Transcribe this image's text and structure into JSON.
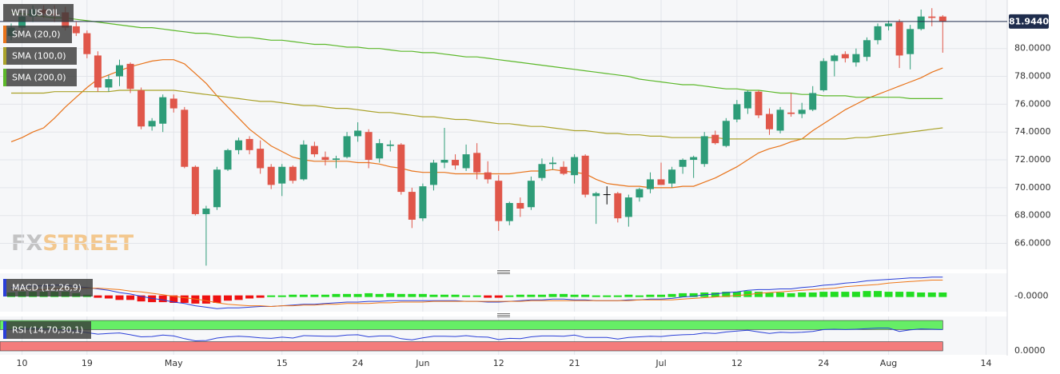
{
  "watermark": [
    "FX",
    "STREET"
  ],
  "chart_data": [
    {
      "type": "candlestick",
      "title": "WTI US OIL",
      "categories": [
        null,
        "10",
        null,
        null,
        null,
        null,
        null,
        "19",
        null,
        null,
        null,
        null,
        null,
        null,
        null,
        "May",
        null,
        null,
        null,
        null,
        null,
        null,
        null,
        null,
        null,
        "15",
        null,
        null,
        null,
        null,
        null,
        null,
        "24",
        null,
        null,
        null,
        null,
        null,
        "Jun",
        null,
        null,
        null,
        null,
        null,
        null,
        "12",
        null,
        null,
        null,
        null,
        null,
        null,
        "21",
        null,
        null,
        null,
        null,
        null,
        null,
        null,
        "Jul",
        null,
        null,
        null,
        null,
        null,
        null,
        "12",
        null,
        null,
        null,
        null,
        null,
        null,
        null,
        "24",
        null,
        null,
        null,
        null,
        null,
        "Aug",
        null,
        null,
        null,
        null,
        null,
        null,
        null,
        null,
        "14",
        null,
        null
      ],
      "open": [
        80.9,
        81.5,
        82.3,
        82.8,
        82.5,
        82.6,
        81.6,
        81.1,
        79.5,
        77.2,
        78.0,
        78.9,
        77.0,
        74.4,
        74.6,
        76.4,
        75.6,
        71.5,
        68.1,
        68.6,
        71.3,
        72.7,
        73.5,
        72.8,
        71.5,
        70.3,
        71.5,
        70.6,
        73.0,
        72.2,
        72.0,
        72.2,
        73.7,
        74.0,
        72.1,
        73.0,
        73.1,
        69.7,
        67.8,
        70.2,
        71.8,
        72.0,
        71.4,
        72.5,
        71.1,
        70.5,
        67.6,
        68.9,
        68.6,
        70.7,
        71.7,
        71.5,
        70.9,
        72.3,
        69.4,
        69.5,
        69.6,
        67.9,
        69.3,
        69.9,
        70.6,
        70.3,
        71.5,
        72.0,
        71.7,
        73.8,
        73.0,
        74.9,
        75.7,
        76.9,
        75.3,
        74.1,
        75.4,
        75.3,
        75.6,
        77.0,
        79.1,
        79.6,
        79.0,
        79.4,
        80.6,
        81.6,
        81.9,
        79.6,
        81.4,
        82.3,
        82.3,
        null,
        null,
        null,
        null,
        null,
        null
      ],
      "high": [
        81.8,
        82.5,
        83.1,
        83.1,
        83.1,
        83.0,
        81.9,
        81.3,
        79.8,
        78.1,
        79.2,
        79.0,
        77.2,
        75.0,
        76.7,
        76.7,
        75.8,
        71.6,
        68.7,
        71.5,
        72.8,
        73.6,
        73.7,
        73.4,
        71.7,
        71.7,
        71.6,
        73.4,
        73.3,
        72.6,
        72.3,
        74.0,
        74.7,
        74.2,
        73.5,
        73.4,
        73.2,
        70.0,
        70.3,
        72.0,
        74.3,
        72.4,
        73.1,
        73.2,
        71.9,
        70.9,
        69.0,
        69.3,
        70.8,
        72.1,
        72.2,
        71.9,
        72.4,
        72.4,
        69.7,
        70.1,
        69.7,
        69.5,
        70.0,
        71.1,
        71.8,
        71.5,
        72.1,
        72.3,
        74.0,
        74.1,
        75.0,
        76.3,
        77.0,
        77.0,
        75.7,
        75.8,
        76.8,
        76.1,
        77.3,
        79.3,
        79.6,
        79.8,
        80.0,
        80.8,
        81.8,
        82.0,
        82.1,
        81.7,
        82.8,
        82.9,
        82.4,
        null,
        null,
        null,
        null,
        null,
        null
      ],
      "low": [
        80.6,
        81.2,
        81.9,
        82.2,
        81.9,
        81.3,
        80.9,
        79.3,
        76.9,
        76.9,
        77.3,
        76.8,
        74.2,
        74.1,
        74.0,
        75.4,
        71.4,
        68.0,
        64.4,
        68.4,
        71.2,
        72.4,
        72.4,
        71.0,
        69.9,
        69.4,
        70.3,
        70.5,
        72.2,
        71.6,
        71.4,
        72.1,
        73.3,
        71.4,
        71.8,
        72.6,
        69.5,
        67.1,
        67.6,
        69.8,
        71.4,
        71.3,
        71.2,
        70.6,
        70.3,
        66.9,
        67.3,
        67.9,
        68.4,
        70.5,
        71.3,
        70.9,
        70.3,
        69.3,
        67.4,
        68.8,
        67.5,
        67.2,
        69.0,
        69.6,
        70.2,
        70.0,
        71.0,
        70.7,
        71.5,
        73.1,
        72.9,
        74.7,
        75.3,
        75.0,
        73.8,
        73.9,
        75.1,
        75.0,
        75.5,
        76.9,
        78.0,
        79.0,
        78.7,
        79.1,
        80.3,
        81.3,
        78.6,
        78.5,
        81.3,
        81.6,
        79.7,
        null,
        null,
        null,
        null,
        null,
        null
      ],
      "close": [
        81.5,
        82.3,
        82.8,
        82.5,
        82.4,
        81.5,
        81.1,
        79.6,
        77.2,
        77.8,
        78.8,
        77.1,
        74.4,
        74.8,
        76.5,
        75.7,
        71.5,
        68.1,
        68.5,
        71.3,
        72.7,
        73.4,
        72.7,
        71.4,
        70.2,
        71.5,
        70.5,
        73.1,
        72.4,
        72.0,
        72.1,
        73.7,
        74.1,
        72.0,
        73.2,
        73.1,
        69.7,
        67.7,
        70.1,
        71.8,
        72.0,
        71.6,
        72.4,
        71.1,
        70.6,
        67.6,
        68.9,
        68.5,
        70.5,
        71.7,
        71.8,
        71.0,
        72.2,
        69.5,
        69.6,
        69.5,
        67.8,
        69.3,
        69.9,
        70.6,
        70.2,
        71.3,
        72.0,
        72.2,
        73.7,
        73.2,
        74.8,
        76.0,
        76.9,
        75.2,
        74.2,
        75.6,
        75.3,
        75.6,
        76.8,
        79.1,
        79.5,
        79.3,
        79.6,
        80.6,
        81.6,
        81.8,
        79.5,
        81.4,
        82.3,
        82.2,
        81.944,
        null,
        null,
        null,
        null,
        null,
        null
      ],
      "up_color": "#2e9c78",
      "down_color": "#e0574a",
      "flat_color": "#000000",
      "lines": [
        {
          "name": "SMA (20,0)",
          "color": "#e8731a",
          "values": [
            73.3,
            73.6,
            74.0,
            74.3,
            75.0,
            75.8,
            76.5,
            77.2,
            77.8,
            78.1,
            78.4,
            78.7,
            78.9,
            79.1,
            79.2,
            79.2,
            78.9,
            78.2,
            77.5,
            76.6,
            75.8,
            75.0,
            74.2,
            73.6,
            73.0,
            72.6,
            72.2,
            72.0,
            71.9,
            71.9,
            71.9,
            71.9,
            71.8,
            71.8,
            71.7,
            71.5,
            71.4,
            71.2,
            71.1,
            71.1,
            71.1,
            71.0,
            71.0,
            71.0,
            71.0,
            71.0,
            71.0,
            71.1,
            71.2,
            71.2,
            71.3,
            71.2,
            71.1,
            71.0,
            70.6,
            70.3,
            70.2,
            70.1,
            70.1,
            70.0,
            70.0,
            70.0,
            70.1,
            70.1,
            70.4,
            70.7,
            71.1,
            71.5,
            72.0,
            72.5,
            72.8,
            73.0,
            73.3,
            73.5,
            74.1,
            74.6,
            75.1,
            75.6,
            76.0,
            76.4,
            76.7,
            77.0,
            77.3,
            77.6,
            77.9,
            78.3,
            78.6,
            null,
            null,
            null,
            null,
            null,
            null
          ]
        },
        {
          "name": "SMA (100,0)",
          "color": "#aaa22a",
          "values": [
            76.8,
            76.8,
            76.8,
            76.8,
            76.9,
            76.9,
            76.9,
            76.9,
            76.9,
            76.9,
            77.0,
            77.0,
            77.0,
            77.0,
            77.0,
            77.0,
            76.9,
            76.8,
            76.7,
            76.6,
            76.5,
            76.4,
            76.3,
            76.2,
            76.2,
            76.1,
            76.0,
            75.9,
            75.9,
            75.8,
            75.7,
            75.7,
            75.6,
            75.5,
            75.4,
            75.4,
            75.3,
            75.2,
            75.1,
            75.1,
            75.0,
            74.9,
            74.9,
            74.8,
            74.7,
            74.6,
            74.6,
            74.5,
            74.4,
            74.4,
            74.3,
            74.2,
            74.1,
            74.1,
            74.0,
            73.9,
            73.9,
            73.8,
            73.8,
            73.7,
            73.7,
            73.6,
            73.6,
            73.6,
            73.6,
            73.6,
            73.5,
            73.5,
            73.5,
            73.5,
            73.5,
            73.5,
            73.5,
            73.5,
            73.5,
            73.5,
            73.5,
            73.5,
            73.6,
            73.6,
            73.7,
            73.8,
            73.9,
            74.0,
            74.1,
            74.2,
            74.3,
            null,
            null,
            null,
            null,
            null,
            null
          ]
        },
        {
          "name": "SMA (200,0)",
          "color": "#5cb82a",
          "values": [
            82.6,
            82.5,
            82.4,
            82.3,
            82.2,
            82.2,
            82.1,
            82.0,
            81.9,
            81.8,
            81.7,
            81.6,
            81.5,
            81.5,
            81.4,
            81.3,
            81.2,
            81.1,
            81.1,
            81.0,
            80.9,
            80.8,
            80.8,
            80.7,
            80.6,
            80.6,
            80.5,
            80.4,
            80.3,
            80.3,
            80.2,
            80.1,
            80.1,
            80.0,
            80.0,
            79.9,
            79.8,
            79.8,
            79.7,
            79.7,
            79.6,
            79.5,
            79.4,
            79.4,
            79.3,
            79.2,
            79.1,
            79.0,
            78.9,
            78.8,
            78.7,
            78.6,
            78.5,
            78.4,
            78.3,
            78.2,
            78.1,
            78.0,
            77.8,
            77.7,
            77.6,
            77.5,
            77.4,
            77.4,
            77.3,
            77.2,
            77.1,
            77.1,
            77.0,
            77.0,
            76.9,
            76.8,
            76.8,
            76.7,
            76.7,
            76.6,
            76.6,
            76.6,
            76.5,
            76.5,
            76.5,
            76.5,
            76.5,
            76.4,
            76.4,
            76.4,
            76.4,
            null,
            null,
            null,
            null,
            null,
            null
          ]
        }
      ],
      "last_price": {
        "value": 81.944,
        "label": "81.9440"
      },
      "price_line_color": "#1f2d4d",
      "ylim": [
        64.25,
        83.2
      ],
      "yticks": [
        {
          "value": 66,
          "label": "66.0000"
        },
        {
          "value": 68,
          "label": "68.0000"
        },
        {
          "value": 70,
          "label": "70.0000"
        },
        {
          "value": 72,
          "label": "72.0000"
        },
        {
          "value": 74,
          "label": "74.0000"
        },
        {
          "value": 76,
          "label": "76.0000"
        },
        {
          "value": 78,
          "label": "78.0000"
        },
        {
          "value": 80,
          "label": "80.0000"
        }
      ],
      "grid": true
    },
    {
      "type": "macd",
      "title": "MACD (12,26,9)",
      "series": [
        {
          "color": "#2a3fd8",
          "values": [
            1.2,
            1.3,
            1.4,
            1.4,
            1.5,
            1.5,
            1.3,
            1.2,
            1.0,
            0.8,
            0.5,
            0.3,
            0.0,
            -0.3,
            -0.5,
            -0.8,
            -1.0,
            -1.3,
            -1.5,
            -1.7,
            -1.6,
            -1.6,
            -1.5,
            -1.4,
            -1.4,
            -1.3,
            -1.2,
            -1.1,
            -1.1,
            -1.0,
            -0.9,
            -0.8,
            -0.8,
            -0.7,
            -0.7,
            -0.6,
            -0.6,
            -0.6,
            -0.6,
            -0.6,
            -0.6,
            -0.6,
            -0.7,
            -0.7,
            -0.8,
            -0.8,
            -0.7,
            -0.6,
            -0.5,
            -0.5,
            -0.4,
            -0.4,
            -0.5,
            -0.5,
            -0.6,
            -0.6,
            -0.6,
            -0.5,
            -0.5,
            -0.4,
            -0.4,
            -0.3,
            -0.1,
            0.0,
            0.2,
            0.3,
            0.5,
            0.6,
            0.8,
            0.9,
            0.9,
            1.0,
            1.0,
            1.2,
            1.3,
            1.5,
            1.6,
            1.8,
            1.9,
            2.1,
            2.2,
            2.3,
            2.4,
            2.5,
            2.5,
            2.6,
            2.6,
            null,
            null,
            null,
            null,
            null,
            null
          ]
        },
        {
          "color": "#f07818",
          "values": [
            0.8,
            0.8,
            0.9,
            0.9,
            1.0,
            1.0,
            1.0,
            1.1,
            1.1,
            1.0,
            0.9,
            0.7,
            0.6,
            0.4,
            0.2,
            0.0,
            -0.2,
            -0.4,
            -0.6,
            -0.9,
            -1.1,
            -1.2,
            -1.3,
            -1.3,
            -1.4,
            -1.3,
            -1.3,
            -1.2,
            -1.2,
            -1.1,
            -1.1,
            -1.0,
            -1.0,
            -1.0,
            -0.9,
            -0.9,
            -0.8,
            -0.8,
            -0.8,
            -0.7,
            -0.7,
            -0.7,
            -0.7,
            -0.7,
            -0.7,
            -0.7,
            -0.7,
            -0.7,
            -0.6,
            -0.6,
            -0.6,
            -0.6,
            -0.6,
            -0.6,
            -0.6,
            -0.6,
            -0.6,
            -0.6,
            -0.5,
            -0.5,
            -0.5,
            -0.5,
            -0.4,
            -0.3,
            -0.2,
            -0.1,
            0.0,
            0.1,
            0.2,
            0.4,
            0.5,
            0.6,
            0.7,
            0.8,
            0.9,
            1.0,
            1.1,
            1.3,
            1.4,
            1.5,
            1.6,
            1.8,
            1.9,
            2.0,
            2.1,
            2.2,
            2.2,
            null,
            null,
            null,
            null,
            null,
            null
          ]
        }
      ],
      "histogram": [
        0.4,
        0.5,
        0.5,
        0.5,
        0.5,
        0.5,
        0.3,
        0.1,
        -0.1,
        -0.2,
        -0.4,
        -0.4,
        -0.6,
        -0.7,
        -0.7,
        -0.8,
        -0.8,
        -0.9,
        -0.9,
        -0.8,
        -0.5,
        -0.4,
        -0.2,
        -0.1,
        0.0,
        0.0,
        0.1,
        0.1,
        0.1,
        0.1,
        0.2,
        0.2,
        0.2,
        0.3,
        0.2,
        0.3,
        0.2,
        0.2,
        0.2,
        0.1,
        0.1,
        0.1,
        0.0,
        0.0,
        -0.1,
        -0.1,
        0.0,
        0.1,
        0.1,
        0.1,
        0.2,
        0.2,
        0.1,
        0.1,
        0.0,
        0.0,
        0.0,
        0.1,
        0.0,
        0.1,
        0.1,
        0.2,
        0.3,
        0.3,
        0.4,
        0.4,
        0.5,
        0.5,
        0.6,
        0.5,
        0.4,
        0.4,
        0.3,
        0.4,
        0.4,
        0.5,
        0.5,
        0.5,
        0.5,
        0.6,
        0.6,
        0.5,
        0.5,
        0.5,
        0.4,
        0.4,
        0.4,
        null,
        null,
        null,
        null,
        null,
        null
      ],
      "up_color": "#22dd22",
      "down_color": "#ee1111",
      "ylim": [
        -2,
        2.8
      ],
      "yticks": [
        {
          "value": 0,
          "label": "-0.0000"
        }
      ]
    },
    {
      "type": "rsi",
      "title": "RSI (14,70,30,1)",
      "values": [
        70,
        72,
        74,
        72,
        71,
        68,
        65,
        60,
        55,
        57,
        59,
        53,
        46,
        47,
        52,
        49,
        40,
        33,
        34,
        42,
        46,
        48,
        46,
        43,
        41,
        45,
        42,
        50,
        49,
        48,
        48,
        52,
        53,
        46,
        49,
        49,
        40,
        36,
        43,
        48,
        48,
        47,
        50,
        46,
        45,
        37,
        41,
        40,
        46,
        49,
        49,
        48,
        52,
        44,
        44,
        44,
        39,
        44,
        46,
        48,
        47,
        51,
        53,
        54,
        59,
        57,
        62,
        65,
        68,
        62,
        57,
        61,
        60,
        61,
        64,
        70,
        71,
        70,
        71,
        73,
        75,
        75,
        64,
        69,
        72,
        71,
        70,
        null,
        null,
        null,
        null,
        null,
        null
      ],
      "color": "#2a3fd8",
      "upper": 70,
      "lower": 30,
      "upper_color": "#66ee66",
      "lower_color": "#f47c7c",
      "ylim": [
        0,
        100
      ],
      "yticks": [
        {
          "value": 0,
          "label": "0.0000"
        }
      ]
    }
  ]
}
